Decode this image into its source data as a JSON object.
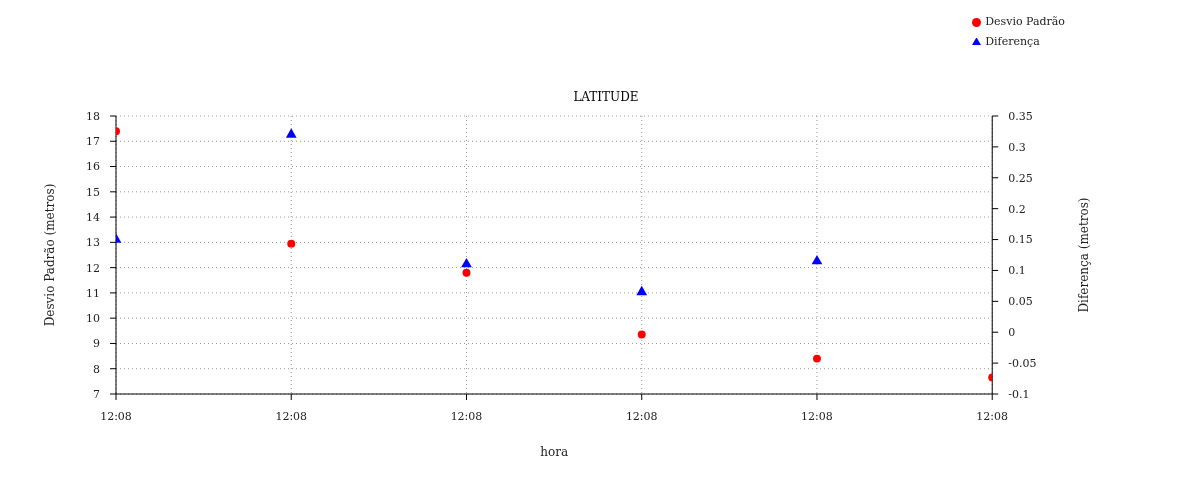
{
  "chart_data": {
    "type": "scatter",
    "title": "LATITUDE",
    "xlabel": "hora",
    "ylabel": "Desvio Padrão (metros)",
    "y2label": "Diferença (metros)",
    "categories": [
      "12:08",
      "12:08",
      "12:08",
      "12:08",
      "12:08",
      "12:08"
    ],
    "series": [
      {
        "name": "Diferença",
        "color": "#0000ff",
        "marker": "triangle",
        "axis": "y2",
        "values": [
          0.15,
          0.32,
          0.11,
          0.065,
          0.115,
          null
        ]
      },
      {
        "name": "Desvio Padrão",
        "color": "#ff0000",
        "marker": "circle",
        "values": [
          17.4,
          12.95,
          11.8,
          9.35,
          8.4,
          7.65
        ]
      }
    ],
    "ylim": [
      7,
      18
    ],
    "yticks": [
      7,
      8,
      9,
      10,
      11,
      12,
      13,
      14,
      15,
      16,
      17,
      18
    ],
    "y2lim": [
      -0.1,
      0.35
    ],
    "y2ticks": [
      -0.1,
      -0.05,
      0,
      0.05,
      0.1,
      0.15,
      0.2,
      0.25,
      0.3,
      0.35
    ],
    "grid": true,
    "legend": "top right"
  }
}
